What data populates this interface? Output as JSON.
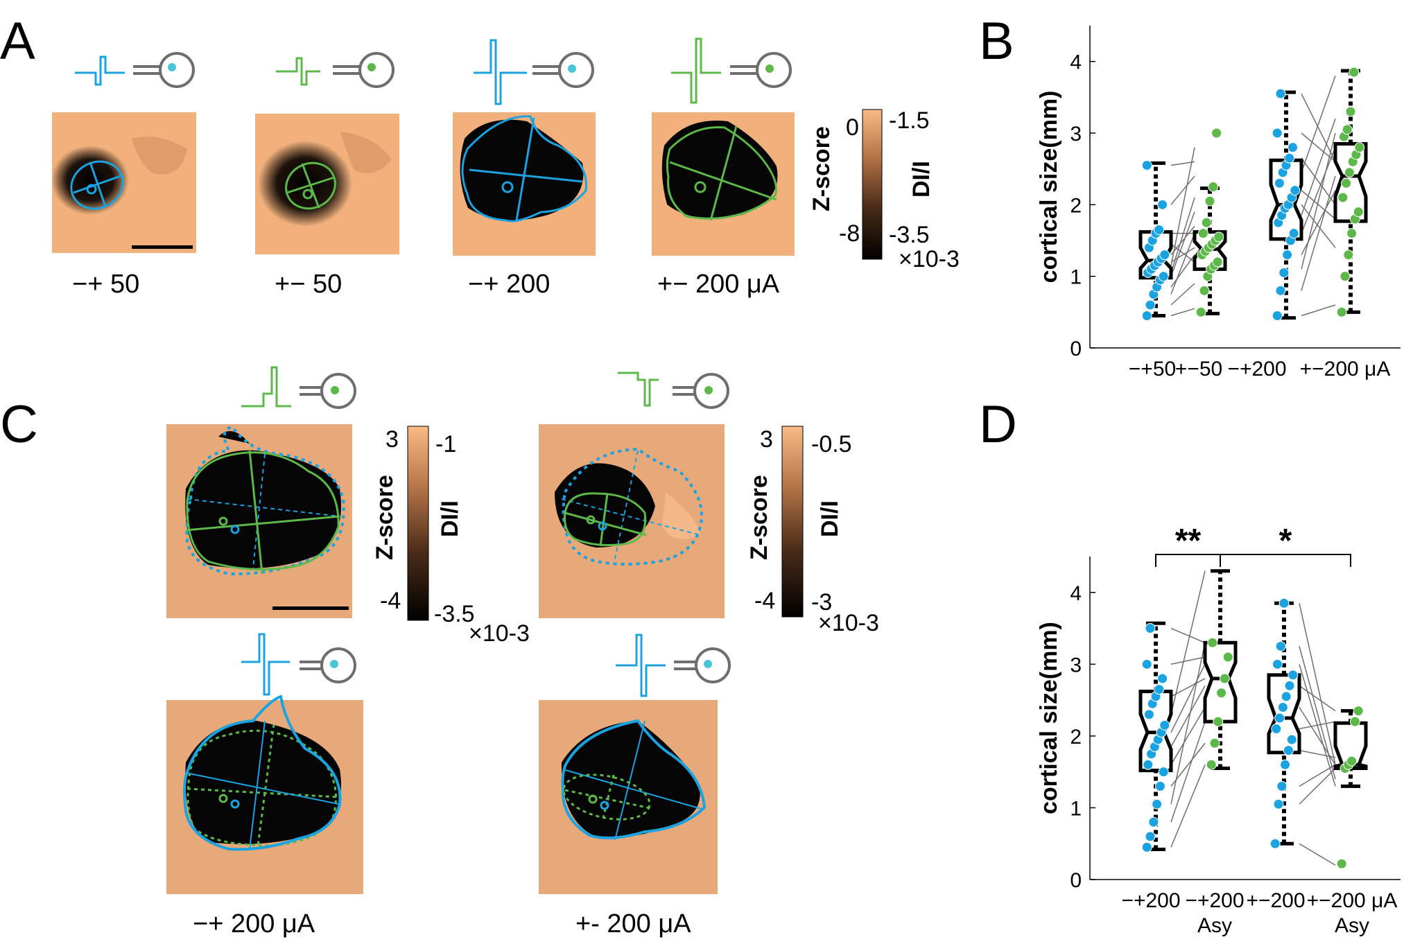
{
  "panels": {
    "A": "A",
    "B": "B",
    "C": "C",
    "D": "D"
  },
  "colors": {
    "blue": "#1aa3e0",
    "green": "#5cb848",
    "gray": "#6e6e6e",
    "tissue": "#f2b17c",
    "dark": "#050505"
  },
  "panelA": {
    "captions": [
      "−+ 50",
      "+− 50",
      "−+ 200",
      "+− 200 μA"
    ],
    "colorbar": {
      "z_top": "0",
      "z_bottom": "-8",
      "z_label": "Z-score",
      "d_top": "-1.5",
      "d_bottom": "-3.5",
      "d_label": "DI/I",
      "exponent": "×10-3"
    }
  },
  "panelC": {
    "captions": [
      "−+ 200 μA",
      "+- 200 μA"
    ],
    "colorbar_left": {
      "z_top": "3",
      "z_bottom": "-4",
      "z_label": "Z-score",
      "d_top": "-1",
      "d_bottom": "-3.5",
      "d_label": "DI/I",
      "exponent": "×10-3"
    },
    "colorbar_right": {
      "z_top": "3",
      "z_bottom": "-4",
      "z_label": "Z-score",
      "d_top": "-0.5",
      "d_bottom": "-3",
      "d_label": "DI/I",
      "exponent": "×10-3"
    }
  },
  "chart_data": [
    {
      "panel": "B",
      "type": "box",
      "ylabel": "cortical size(mm)",
      "ylim": [
        0,
        4.5
      ],
      "yticks": [
        "0",
        "1",
        "2",
        "3",
        "4"
      ],
      "categories": [
        "−+50",
        "+−50",
        "−+200",
        "+−200 μA"
      ],
      "series": [
        {
          "name": "−+50",
          "color": "blue",
          "whisker": [
            0.45,
            2.58
          ],
          "q1": 0.98,
          "median": 1.22,
          "q3": 1.62,
          "points": [
            0.45,
            0.6,
            0.75,
            0.85,
            0.95,
            1.0,
            1.05,
            1.1,
            1.15,
            1.2,
            1.25,
            1.3,
            1.4,
            1.5,
            1.6,
            1.65,
            2.0,
            2.55
          ]
        },
        {
          "name": "+−50",
          "color": "green",
          "whisker": [
            0.48,
            2.23
          ],
          "q1": 1.1,
          "median": 1.38,
          "q3": 1.62,
          "points": [
            0.5,
            0.8,
            1.0,
            1.1,
            1.15,
            1.2,
            1.3,
            1.35,
            1.4,
            1.45,
            1.5,
            1.55,
            1.6,
            1.75,
            2.05,
            2.25,
            3.0
          ]
        },
        {
          "name": "−+200",
          "color": "blue",
          "whisker": [
            0.42,
            3.57
          ],
          "q1": 1.52,
          "median": 2.0,
          "q3": 2.62,
          "points": [
            0.45,
            0.8,
            1.05,
            1.3,
            1.5,
            1.6,
            1.75,
            1.85,
            1.95,
            2.0,
            2.1,
            2.2,
            2.3,
            2.45,
            2.55,
            2.65,
            2.8,
            3.0,
            3.55
          ]
        },
        {
          "name": "+−200 μA",
          "color": "green",
          "whisker": [
            0.5,
            3.87
          ],
          "q1": 1.77,
          "median": 2.4,
          "q3": 2.85,
          "points": [
            0.5,
            1.0,
            1.3,
            1.6,
            1.8,
            1.9,
            2.1,
            2.3,
            2.45,
            2.6,
            2.7,
            2.8,
            2.95,
            3.05,
            3.3,
            3.85
          ]
        }
      ],
      "pairs": [
        [
          0.45,
          0.55
        ],
        [
          0.6,
          0.9
        ],
        [
          0.75,
          1.6
        ],
        [
          0.85,
          1.3
        ],
        [
          1.0,
          1.9
        ],
        [
          1.05,
          2.1
        ],
        [
          1.15,
          2.8
        ],
        [
          1.2,
          1.4
        ],
        [
          1.3,
          1.7
        ],
        [
          1.45,
          1.2
        ],
        [
          1.6,
          1.6
        ],
        [
          2.0,
          2.4
        ],
        [
          2.55,
          2.6
        ],
        [
          0.45,
          0.6
        ],
        [
          0.8,
          2.4
        ],
        [
          1.1,
          3.0
        ],
        [
          1.3,
          2.2
        ],
        [
          1.6,
          2.8
        ],
        [
          1.85,
          3.2
        ],
        [
          2.0,
          1.4
        ],
        [
          2.2,
          1.8
        ],
        [
          2.45,
          3.8
        ],
        [
          2.65,
          2.0
        ],
        [
          3.0,
          2.6
        ],
        [
          3.55,
          2.6
        ]
      ]
    },
    {
      "panel": "D",
      "type": "box",
      "ylabel": "cortical size(mm)",
      "ylim": [
        0,
        4.5
      ],
      "yticks": [
        "0",
        "1",
        "2",
        "3",
        "4"
      ],
      "categories": [
        "−+200",
        "−+200",
        "+−200",
        "+−200 μA"
      ],
      "sub_labels": [
        "",
        "Asy",
        "",
        "Asy"
      ],
      "significance": [
        "**",
        "*"
      ],
      "series": [
        {
          "name": "−+200",
          "color": "blue",
          "whisker": [
            0.42,
            3.57
          ],
          "q1": 1.52,
          "median": 2.05,
          "q3": 2.62,
          "points": [
            0.45,
            0.6,
            0.8,
            1.05,
            1.3,
            1.5,
            1.6,
            1.75,
            1.85,
            1.95,
            2.05,
            2.15,
            2.3,
            2.45,
            2.55,
            2.65,
            2.8,
            3.0,
            3.5
          ]
        },
        {
          "name": "−+200 Asy",
          "color": "green",
          "whisker": [
            1.55,
            4.3
          ],
          "q1": 2.2,
          "median": 2.8,
          "q3": 3.3,
          "points": [
            1.6,
            1.9,
            2.2,
            2.6,
            2.8,
            3.1,
            3.3
          ]
        },
        {
          "name": "+−200",
          "color": "blue",
          "whisker": [
            0.5,
            3.85
          ],
          "q1": 1.77,
          "median": 2.25,
          "q3": 2.85,
          "points": [
            0.5,
            1.05,
            1.3,
            1.6,
            1.8,
            1.95,
            2.1,
            2.25,
            2.4,
            2.55,
            2.7,
            2.85,
            3.0,
            3.25,
            3.85
          ]
        },
        {
          "name": "+−200 μA Asy",
          "color": "green",
          "whisker": [
            1.3,
            2.35
          ],
          "q1": 1.55,
          "median": 1.6,
          "q3": 2.18,
          "points": [
            0.22,
            1.55,
            1.6,
            1.65,
            2.2,
            2.35
          ]
        }
      ]
    }
  ]
}
